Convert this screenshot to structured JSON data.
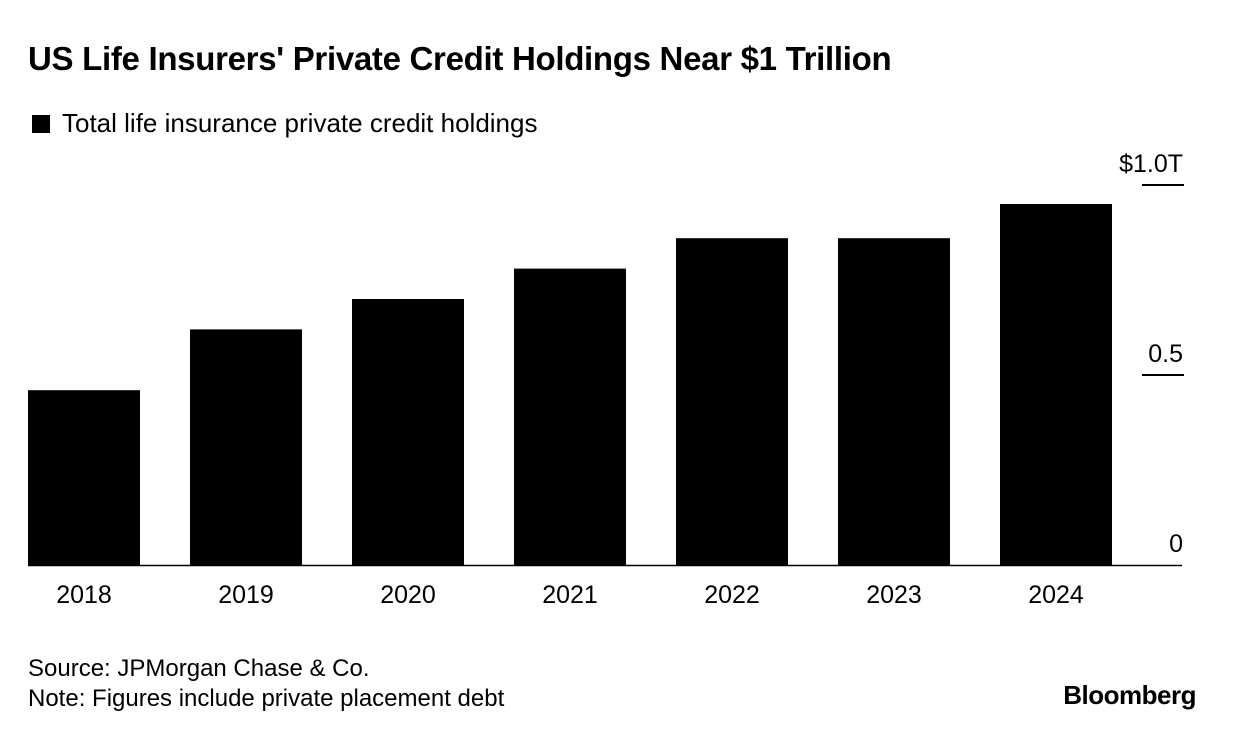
{
  "title": "US Life Insurers' Private Credit Holdings Near $1 Trillion",
  "source": "Source: JPMorgan Chase & Co.",
  "note": "Note: Figures include private placement debt",
  "brand": "Bloomberg",
  "chart_data": {
    "type": "bar",
    "title": "US Life Insurers' Private Credit Holdings Near $1 Trillion",
    "categories": [
      "2018",
      "2019",
      "2020",
      "2021",
      "2022",
      "2023",
      "2024"
    ],
    "series": [
      {
        "name": "Total life insurance private credit holdings",
        "color": "#000000",
        "values": [
          0.46,
          0.62,
          0.7,
          0.78,
          0.86,
          0.86,
          0.95
        ]
      }
    ],
    "yticks": [
      {
        "value": 0,
        "label": "0"
      },
      {
        "value": 0.5,
        "label": "0.5"
      },
      {
        "value": 1.0,
        "label": "$1.0T"
      }
    ],
    "ylim": [
      0,
      1.0
    ],
    "xlabel": "",
    "ylabel": "",
    "legend": "top-left",
    "grid": false
  }
}
